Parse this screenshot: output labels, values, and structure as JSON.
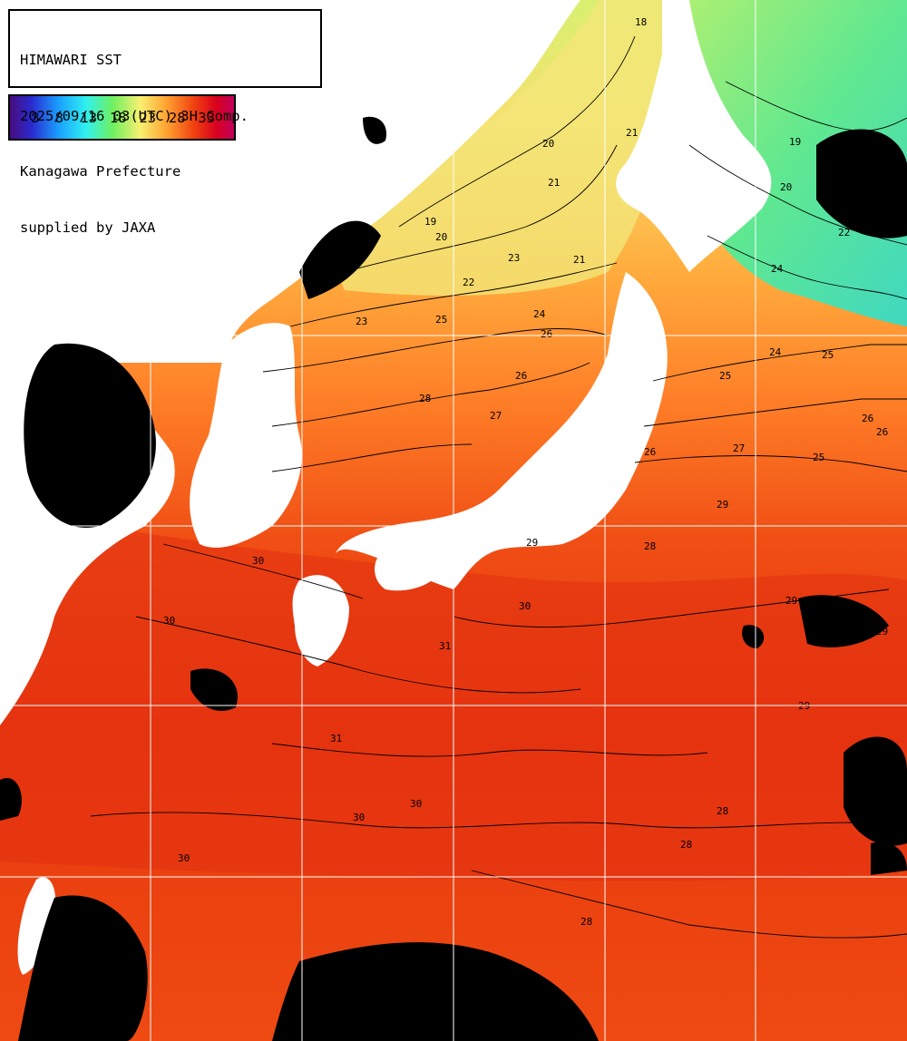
{
  "header": {
    "line1": "HIMAWARI SST",
    "line2": "2025/09/16 03(UTC) 3H Comp.",
    "line3": "Kanagawa Prefecture",
    "line4": "supplied by JAXA"
  },
  "legend": {
    "ticks": [
      "3",
      "8",
      "13",
      "18",
      "23",
      "28",
      "33"
    ],
    "gradient_colors": [
      "#3a0a6a",
      "#2020c0",
      "#1a9aff",
      "#30e8e8",
      "#60f060",
      "#f0f070",
      "#ffa030",
      "#f04010",
      "#d00020",
      "#c00060"
    ]
  },
  "map": {
    "land_color": "#ffffff",
    "cloud_color": "#000000",
    "grid_color": "#ffffff",
    "contour_color": "#000000",
    "contour_labels": [
      "18",
      "19",
      "20",
      "21",
      "20",
      "21",
      "22",
      "23",
      "24",
      "25",
      "26",
      "26",
      "25",
      "27",
      "28",
      "29",
      "30",
      "30",
      "29",
      "31",
      "30",
      "31",
      "30",
      "29",
      "28",
      "26",
      "25",
      "24",
      "27",
      "29",
      "28",
      "30",
      "30",
      "28",
      "29",
      "28",
      "26",
      "26",
      "25",
      "24",
      "22",
      "20",
      "19",
      "21",
      "23"
    ]
  }
}
